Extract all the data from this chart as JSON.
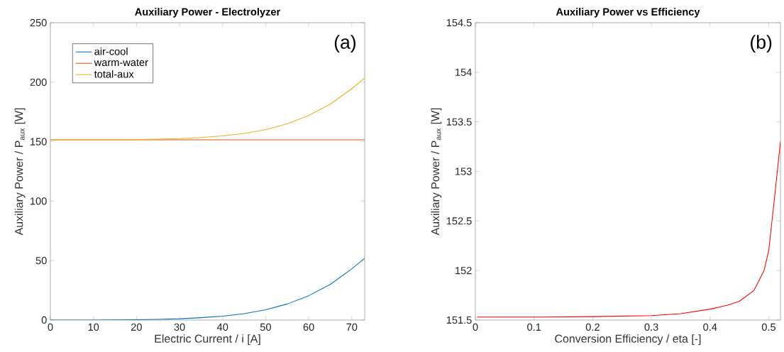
{
  "chart_data": [
    {
      "type": "line",
      "title": "Auxiliary Power - Electrolyzer",
      "xlabel": "Electric Current / i [A]",
      "ylabel": "Auxiliary Power / P$_{aux}$ [W]",
      "xlim": [
        0,
        73
      ],
      "ylim": [
        0,
        250
      ],
      "xticks": [
        0,
        10,
        20,
        30,
        40,
        50,
        60,
        70
      ],
      "yticks": [
        0,
        50,
        100,
        150,
        200,
        250
      ],
      "legend": "top left",
      "grid": false,
      "marker": "none",
      "line_style": "solid",
      "annotations": [
        "(a)"
      ],
      "series": [
        {
          "name": "air-cool",
          "color": "#0072bd",
          "x": [
            0,
            10,
            20,
            25,
            30,
            35,
            40,
            45,
            50,
            55,
            60,
            65,
            70,
            73
          ],
          "values": [
            0,
            0.05,
            0.3,
            0.6,
            1.1,
            2,
            3.3,
            5.4,
            8.6,
            13.5,
            20.5,
            30,
            43,
            52
          ]
        },
        {
          "name": "warm-water",
          "color": "#d95319",
          "x": [
            0,
            73
          ],
          "values": [
            151.5,
            151.5
          ]
        },
        {
          "name": "total-aux",
          "color": "#edb120",
          "x": [
            0,
            10,
            20,
            25,
            30,
            35,
            40,
            45,
            50,
            55,
            60,
            65,
            70,
            73
          ],
          "values": [
            151.5,
            151.55,
            151.8,
            152.1,
            152.6,
            153.5,
            154.8,
            156.9,
            160.1,
            165,
            172,
            181.5,
            194.5,
            203.5
          ]
        }
      ]
    },
    {
      "type": "line",
      "title": "Auxiliary Power vs Efficiency",
      "xlabel": "Conversion Efficiency / eta [-]",
      "ylabel": "Auxiliary Power / P$_{aux}$ [W]",
      "xlim": [
        0,
        0.52
      ],
      "ylim": [
        151.5,
        154.5
      ],
      "xticks": [
        0,
        0.1,
        0.2,
        0.3,
        0.4,
        0.5
      ],
      "yticks": [
        151.5,
        152,
        152.5,
        153,
        153.5,
        154,
        154.5
      ],
      "grid": false,
      "marker": "none",
      "line_style": "solid",
      "annotations": [
        "(b)"
      ],
      "series": [
        {
          "color": "#ff0000",
          "x": [
            0.003,
            0.1,
            0.2,
            0.3,
            0.35,
            0.4,
            0.43,
            0.45,
            0.475,
            0.492,
            0.5,
            0.51,
            0.52
          ],
          "values": [
            151.53,
            151.53,
            151.535,
            151.545,
            151.565,
            151.61,
            151.65,
            151.69,
            151.8,
            152.0,
            152.2,
            152.74,
            153.3
          ]
        }
      ]
    }
  ]
}
